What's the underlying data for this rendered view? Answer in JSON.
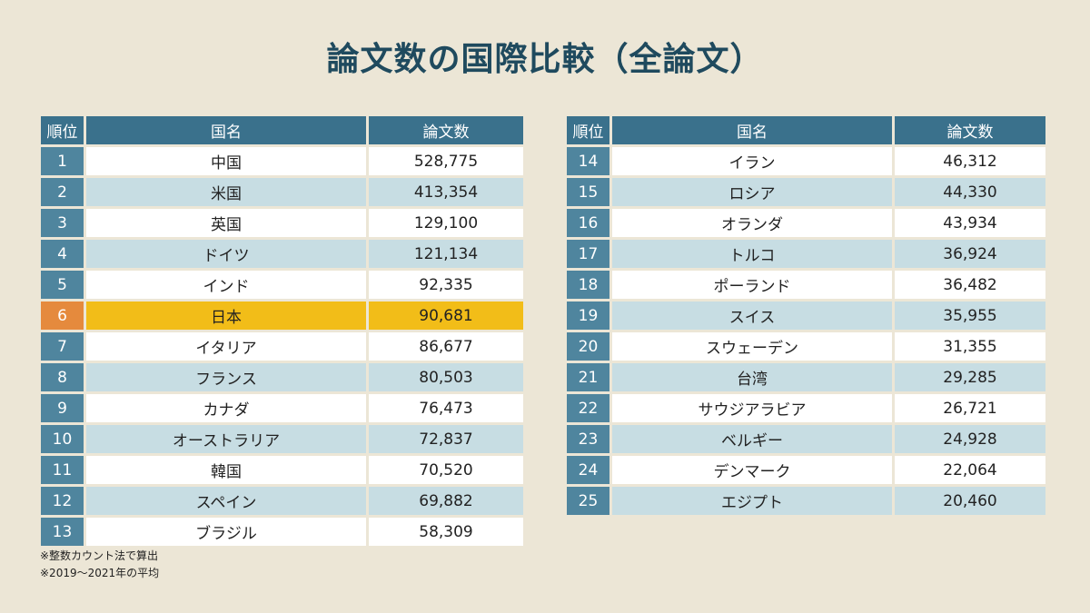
{
  "title": "論文数の国際比較（全論文）",
  "headers": {
    "rank": "順位",
    "country": "国名",
    "count": "論文数"
  },
  "highlight_color": "#f2bd18",
  "highlight_rank_color": "#e58a3d",
  "chart_data": {
    "type": "table",
    "title": "論文数の国際比較（全論文）",
    "columns": [
      "順位",
      "国名",
      "論文数"
    ],
    "highlighted_rank": "6",
    "rows": [
      {
        "rank": "1",
        "country": "中国",
        "count": "528,775"
      },
      {
        "rank": "2",
        "country": "米国",
        "count": "413,354"
      },
      {
        "rank": "3",
        "country": "英国",
        "count": "129,100"
      },
      {
        "rank": "4",
        "country": "ドイツ",
        "count": "121,134"
      },
      {
        "rank": "5",
        "country": "インド",
        "count": "92,335"
      },
      {
        "rank": "6",
        "country": "日本",
        "count": "90,681"
      },
      {
        "rank": "7",
        "country": "イタリア",
        "count": "86,677"
      },
      {
        "rank": "8",
        "country": "フランス",
        "count": "80,503"
      },
      {
        "rank": "9",
        "country": "カナダ",
        "count": "76,473"
      },
      {
        "rank": "10",
        "country": "オーストラリア",
        "count": "72,837"
      },
      {
        "rank": "11",
        "country": "韓国",
        "count": "70,520"
      },
      {
        "rank": "12",
        "country": "スペイン",
        "count": "69,882"
      },
      {
        "rank": "13",
        "country": "ブラジル",
        "count": "58,309"
      },
      {
        "rank": "14",
        "country": "イラン",
        "count": "46,312"
      },
      {
        "rank": "15",
        "country": "ロシア",
        "count": "44,330"
      },
      {
        "rank": "16",
        "country": "オランダ",
        "count": "43,934"
      },
      {
        "rank": "17",
        "country": "トルコ",
        "count": "36,924"
      },
      {
        "rank": "18",
        "country": "ポーランド",
        "count": "36,482"
      },
      {
        "rank": "19",
        "country": "スイス",
        "count": "35,955"
      },
      {
        "rank": "20",
        "country": "スウェーデン",
        "count": "31,355"
      },
      {
        "rank": "21",
        "country": "台湾",
        "count": "29,285"
      },
      {
        "rank": "22",
        "country": "サウジアラビア",
        "count": "26,721"
      },
      {
        "rank": "23",
        "country": "ベルギー",
        "count": "24,928"
      },
      {
        "rank": "24",
        "country": "デンマーク",
        "count": "22,064"
      },
      {
        "rank": "25",
        "country": "エジプト",
        "count": "20,460"
      }
    ]
  },
  "notes": [
    "※整数カウント法で算出",
    "※2019～2021年の平均"
  ]
}
